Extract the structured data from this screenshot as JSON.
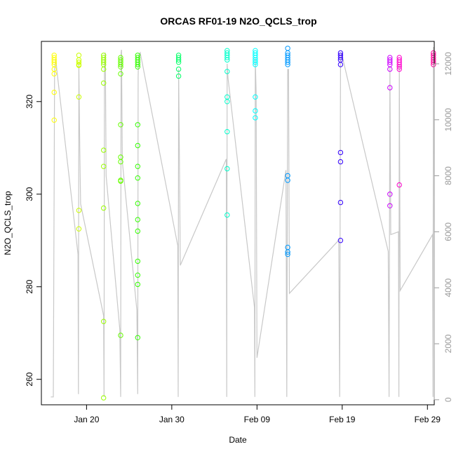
{
  "chart_data": {
    "type": "scatter",
    "title": "ORCAS RF01-19 N2O_QCLS_trop",
    "xlabel": "Date",
    "ylabel": "N2O_QCLS_trop",
    "x_axis": {
      "range": [
        14.7,
        60.8
      ],
      "ticks": [
        {
          "value": 20,
          "label": "Jan 20"
        },
        {
          "value": 30,
          "label": "Jan 30"
        },
        {
          "value": 40,
          "label": "Feb 09"
        },
        {
          "value": 50,
          "label": "Feb 19"
        },
        {
          "value": 60,
          "label": "Feb 29"
        }
      ]
    },
    "y_axis": {
      "range": [
        254.5,
        333
      ],
      "ticks": [
        260,
        280,
        300,
        320
      ]
    },
    "y2_axis": {
      "range": [
        -180,
        12800
      ],
      "ticks": [
        0,
        2000,
        4000,
        6000,
        8000,
        10000,
        12000
      ],
      "color": "#9a9a9a"
    },
    "altitude_color": "#c8c8c8",
    "grid": false,
    "legend": "none",
    "series": [
      {
        "color": "#ffff00",
        "points": [
          [
            16.2,
            330
          ],
          [
            16.2,
            329.5
          ],
          [
            16.2,
            329
          ],
          [
            16.2,
            328.5
          ],
          [
            16.2,
            328
          ],
          [
            16.2,
            327
          ],
          [
            16.2,
            326
          ],
          [
            16.2,
            322
          ],
          [
            16.2,
            316
          ]
        ]
      },
      {
        "color": "#ccff00",
        "points": [
          [
            19.1,
            330
          ],
          [
            19.1,
            329
          ],
          [
            19.1,
            328.5
          ],
          [
            19.1,
            328
          ],
          [
            19.1,
            327.8
          ],
          [
            19.1,
            321
          ],
          [
            19.1,
            296.5
          ],
          [
            19.1,
            292.5
          ]
        ]
      },
      {
        "color": "#99ff00",
        "points": [
          [
            22,
            330
          ],
          [
            22,
            329.5
          ],
          [
            22,
            329
          ],
          [
            22,
            328.5
          ],
          [
            22,
            328
          ],
          [
            22,
            327
          ],
          [
            22,
            324
          ],
          [
            22,
            309.5
          ],
          [
            22,
            306
          ],
          [
            22,
            297
          ],
          [
            22,
            272.5
          ],
          [
            22,
            256
          ]
        ]
      },
      {
        "color": "#66ff00",
        "points": [
          [
            24,
            329.5
          ],
          [
            24,
            329
          ],
          [
            24,
            328.5
          ],
          [
            24,
            328
          ],
          [
            24,
            327.5
          ],
          [
            24,
            326
          ],
          [
            24,
            315
          ],
          [
            24,
            308
          ],
          [
            24,
            307
          ],
          [
            24,
            303
          ],
          [
            24,
            302.8
          ],
          [
            24,
            269.5
          ]
        ]
      },
      {
        "color": "#33ff00",
        "points": [
          [
            26,
            330
          ],
          [
            26,
            329.5
          ],
          [
            26,
            329
          ],
          [
            26,
            328.5
          ],
          [
            26,
            328
          ],
          [
            26,
            327.5
          ],
          [
            26,
            315
          ],
          [
            26,
            310.5
          ],
          [
            26,
            306
          ],
          [
            26,
            303.5
          ],
          [
            26,
            298
          ],
          [
            26,
            294.5
          ],
          [
            26,
            292
          ],
          [
            26,
            285.5
          ],
          [
            26,
            282.5
          ],
          [
            26,
            280.5
          ],
          [
            26,
            269
          ]
        ]
      },
      {
        "color": "#00ff66",
        "points": [
          [
            30.8,
            330
          ],
          [
            30.8,
            329.5
          ],
          [
            30.8,
            329
          ],
          [
            30.8,
            328.5
          ],
          [
            30.8,
            327
          ],
          [
            30.8,
            325.5
          ]
        ]
      },
      {
        "color": "#00ffcc",
        "points": [
          [
            36.5,
            331
          ],
          [
            36.5,
            330.5
          ],
          [
            36.5,
            330
          ],
          [
            36.5,
            329.5
          ],
          [
            36.5,
            329
          ],
          [
            36.5,
            326.5
          ],
          [
            36.5,
            321
          ],
          [
            36.5,
            320
          ],
          [
            36.5,
            313.5
          ],
          [
            36.5,
            305.5
          ],
          [
            36.5,
            295.5
          ]
        ]
      },
      {
        "color": "#00ffff",
        "points": [
          [
            39.8,
            331
          ],
          [
            39.8,
            330.5
          ],
          [
            39.8,
            330
          ],
          [
            39.8,
            329.5
          ],
          [
            39.8,
            329
          ],
          [
            39.8,
            328.5
          ],
          [
            39.8,
            328
          ],
          [
            39.8,
            321
          ],
          [
            39.8,
            318
          ],
          [
            39.8,
            316.5
          ]
        ]
      },
      {
        "color": "#0099ff",
        "points": [
          [
            43.6,
            331.5
          ],
          [
            43.6,
            330.5
          ],
          [
            43.6,
            330
          ],
          [
            43.6,
            329.5
          ],
          [
            43.6,
            329
          ],
          [
            43.6,
            328.5
          ],
          [
            43.6,
            328
          ],
          [
            43.6,
            304
          ],
          [
            43.6,
            303
          ],
          [
            43.6,
            288.5
          ],
          [
            43.6,
            287.5
          ],
          [
            43.6,
            287
          ]
        ]
      },
      {
        "color": "#3300ff",
        "points": [
          [
            49.8,
            330.5
          ],
          [
            49.8,
            330
          ],
          [
            49.8,
            329.5
          ],
          [
            49.8,
            329
          ],
          [
            49.8,
            328
          ],
          [
            49.8,
            309
          ],
          [
            49.8,
            307
          ],
          [
            49.8,
            298.2
          ],
          [
            49.8,
            290
          ]
        ]
      },
      {
        "color": "#cc00ff",
        "points": [
          [
            55.6,
            329.5
          ],
          [
            55.6,
            329
          ],
          [
            55.6,
            328.5
          ],
          [
            55.6,
            328
          ],
          [
            55.6,
            327
          ],
          [
            55.6,
            323
          ],
          [
            55.6,
            300
          ],
          [
            55.6,
            297.5
          ]
        ]
      },
      {
        "color": "#ff00cc",
        "points": [
          [
            56.7,
            329.5
          ],
          [
            56.7,
            329
          ],
          [
            56.7,
            328.5
          ],
          [
            56.7,
            328
          ],
          [
            56.7,
            327.5
          ],
          [
            56.7,
            327
          ],
          [
            56.7,
            302
          ]
        ]
      },
      {
        "color": "#ff0099",
        "points": [
          [
            60.7,
            330.5
          ],
          [
            60.7,
            330
          ],
          [
            60.7,
            329.5
          ],
          [
            60.7,
            329
          ],
          [
            60.7,
            328.5
          ],
          [
            60.7,
            328
          ]
        ]
      }
    ],
    "altitude_trace": [
      [
        15.8,
        100
      ],
      [
        16.1,
        100
      ],
      [
        16.2,
        7800
      ],
      [
        16.25,
        11800
      ],
      [
        16.4,
        12200
      ],
      [
        16.5,
        11800
      ],
      [
        19.0,
        5200
      ],
      [
        19.05,
        200
      ],
      [
        19.1,
        12000
      ],
      [
        19.2,
        9000
      ],
      [
        19.3,
        7000
      ],
      [
        22.0,
        3000
      ],
      [
        22.05,
        100
      ],
      [
        22.1,
        12000
      ],
      [
        22.2,
        12400
      ],
      [
        22.3,
        8000
      ],
      [
        23.9,
        2500
      ],
      [
        24.0,
        100
      ],
      [
        24.05,
        12400
      ],
      [
        24.1,
        12500
      ],
      [
        24.2,
        8500
      ],
      [
        25.9,
        3200
      ],
      [
        26.0,
        200
      ],
      [
        26.05,
        11500
      ],
      [
        26.1,
        12300
      ],
      [
        26.3,
        12400
      ],
      [
        30.7,
        5500
      ],
      [
        30.75,
        100
      ],
      [
        30.8,
        11800
      ],
      [
        30.9,
        8500
      ],
      [
        31.0,
        4800
      ],
      [
        36.4,
        8600
      ],
      [
        36.45,
        100
      ],
      [
        36.5,
        12000
      ],
      [
        36.6,
        11500
      ],
      [
        39.7,
        3300
      ],
      [
        39.75,
        100
      ],
      [
        39.8,
        12200
      ],
      [
        39.9,
        11000
      ],
      [
        40.0,
        1500
      ],
      [
        43.4,
        8200
      ],
      [
        43.5,
        100
      ],
      [
        43.6,
        11800
      ],
      [
        43.7,
        11800
      ],
      [
        43.8,
        3800
      ],
      [
        49.6,
        5700
      ],
      [
        49.7,
        100
      ],
      [
        49.8,
        12000
      ],
      [
        49.9,
        12400
      ],
      [
        55.4,
        5300
      ],
      [
        55.5,
        100
      ],
      [
        55.6,
        11900
      ],
      [
        55.7,
        5900
      ],
      [
        56.6,
        6000
      ],
      [
        56.65,
        100
      ],
      [
        56.7,
        12000
      ],
      [
        56.8,
        3900
      ],
      [
        60.6,
        5900
      ],
      [
        60.65,
        100
      ],
      [
        60.7,
        12600
      ]
    ]
  }
}
